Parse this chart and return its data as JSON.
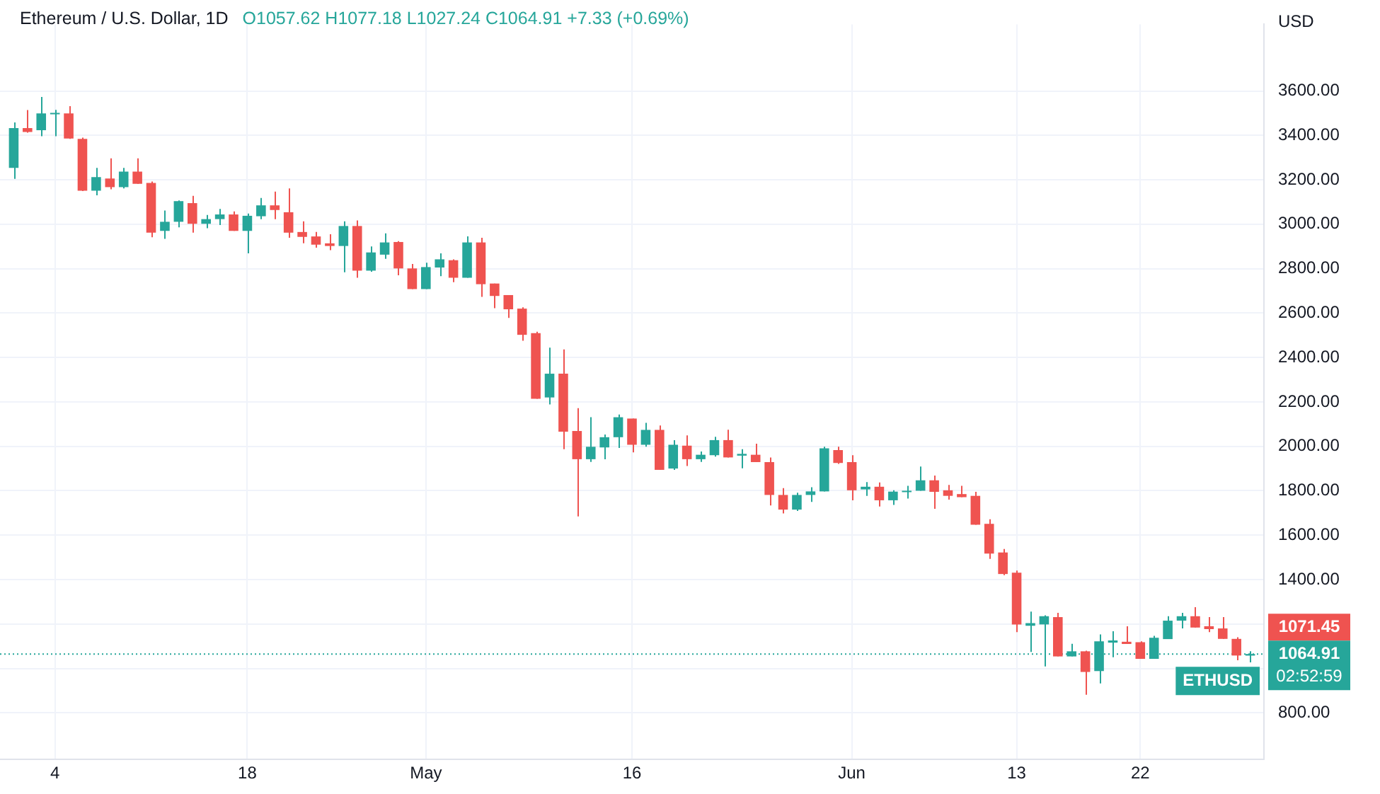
{
  "chart_data": {
    "type": "candlestick",
    "title": "Ethereum / U.S. Dollar, 1D",
    "subtitle": "O1057.62 H1077.18 L1027.24 C1064.91 +7.33 (+0.69%)",
    "ylabel": "USD",
    "x": [
      "--04-01",
      "--04-02",
      "--04-03",
      "--04-04",
      "--04-05",
      "--04-06",
      "--04-07",
      "--04-08",
      "--04-09",
      "--04-10",
      "--04-11",
      "--04-12",
      "--04-13",
      "--04-14",
      "--04-15",
      "--04-16",
      "--04-17",
      "--04-18",
      "--04-19",
      "--04-20",
      "--04-21",
      "--04-22",
      "--04-23",
      "--04-24",
      "--04-25",
      "--04-26",
      "--04-27",
      "--04-28",
      "--04-29",
      "--04-30",
      "--05-01",
      "--05-02",
      "--05-03",
      "--05-04",
      "--05-05",
      "--05-06",
      "--05-07",
      "--05-08",
      "--05-09",
      "--05-10",
      "--05-11",
      "--05-12",
      "--05-13",
      "--05-14",
      "--05-15",
      "--05-16",
      "--05-17",
      "--05-18",
      "--05-19",
      "--05-20",
      "--05-21",
      "--05-22",
      "--05-23",
      "--05-24",
      "--05-25",
      "--05-26",
      "--05-27",
      "--05-28",
      "--05-29",
      "--05-30",
      "--05-31",
      "--06-01",
      "--06-02",
      "--06-03",
      "--06-04",
      "--06-05",
      "--06-06",
      "--06-07",
      "--06-08",
      "--06-09",
      "--06-10",
      "--06-11",
      "--06-12",
      "--06-13",
      "--06-14",
      "--06-15",
      "--06-16",
      "--06-17",
      "--06-18",
      "--06-19",
      "--06-20",
      "--06-21",
      "--06-22",
      "--06-23",
      "--06-24",
      "--06-25",
      "--06-26",
      "--06-27",
      "--06-28",
      "--06-29",
      "--06-30"
    ],
    "ohlc": [
      [
        3254,
        3458,
        3204,
        3433
      ],
      [
        3433,
        3514,
        3412,
        3415
      ],
      [
        3423,
        3573,
        3396,
        3499
      ],
      [
        3498,
        3515,
        3396,
        3501
      ],
      [
        3499,
        3532,
        3384,
        3386
      ],
      [
        3384,
        3390,
        3149,
        3151
      ],
      [
        3151,
        3254,
        3130,
        3212
      ],
      [
        3206,
        3297,
        3157,
        3167
      ],
      [
        3167,
        3254,
        3161,
        3237
      ],
      [
        3237,
        3297,
        3182,
        3182
      ],
      [
        3186,
        3192,
        2941,
        2962
      ],
      [
        2970,
        3062,
        2934,
        3011
      ],
      [
        3011,
        3107,
        2986,
        3104
      ],
      [
        3095,
        3128,
        2962,
        3002
      ],
      [
        3002,
        3042,
        2982,
        3023
      ],
      [
        3023,
        3069,
        2996,
        3044
      ],
      [
        3044,
        3058,
        2970,
        2970
      ],
      [
        2970,
        3048,
        2869,
        3038
      ],
      [
        3036,
        3118,
        3023,
        3085
      ],
      [
        3085,
        3147,
        3023,
        3064
      ],
      [
        3054,
        3161,
        2939,
        2962
      ],
      [
        2965,
        3013,
        2914,
        2943
      ],
      [
        2945,
        2965,
        2894,
        2908
      ],
      [
        2914,
        2955,
        2883,
        2902
      ],
      [
        2902,
        3013,
        2784,
        2992
      ],
      [
        2992,
        3017,
        2759,
        2791
      ],
      [
        2791,
        2900,
        2786,
        2873
      ],
      [
        2863,
        2959,
        2844,
        2918
      ],
      [
        2920,
        2924,
        2770,
        2801
      ],
      [
        2801,
        2821,
        2708,
        2708
      ],
      [
        2708,
        2827,
        2708,
        2807
      ],
      [
        2805,
        2869,
        2766,
        2842
      ],
      [
        2838,
        2842,
        2739,
        2759
      ],
      [
        2759,
        2945,
        2759,
        2918
      ],
      [
        2918,
        2939,
        2673,
        2730
      ],
      [
        2733,
        2733,
        2622,
        2677
      ],
      [
        2681,
        2681,
        2578,
        2617
      ],
      [
        2620,
        2626,
        2475,
        2502
      ],
      [
        2510,
        2516,
        2214,
        2214
      ],
      [
        2220,
        2444,
        2189,
        2327
      ],
      [
        2327,
        2436,
        1987,
        2066
      ],
      [
        2069,
        2172,
        1684,
        1942
      ],
      [
        1942,
        2131,
        1930,
        1998
      ],
      [
        1995,
        2053,
        1942,
        2041
      ],
      [
        2041,
        2143,
        1993,
        2131
      ],
      [
        2125,
        2125,
        1973,
        2007
      ],
      [
        2007,
        2106,
        1998,
        2074
      ],
      [
        2074,
        2094,
        1894,
        1894
      ],
      [
        1900,
        2028,
        1894,
        2007
      ],
      [
        2003,
        2049,
        1911,
        1942
      ],
      [
        1942,
        1977,
        1930,
        1962
      ],
      [
        1960,
        2043,
        1954,
        2028
      ],
      [
        2028,
        2075,
        1950,
        1950
      ],
      [
        1958,
        1987,
        1901,
        1966
      ],
      [
        1962,
        2012,
        1929,
        1929
      ],
      [
        1929,
        1950,
        1734,
        1781
      ],
      [
        1781,
        1812,
        1698,
        1715
      ],
      [
        1715,
        1791,
        1709,
        1781
      ],
      [
        1781,
        1816,
        1750,
        1797
      ],
      [
        1797,
        1998,
        1797,
        1991
      ],
      [
        1983,
        1998,
        1921,
        1925
      ],
      [
        1929,
        1960,
        1757,
        1802
      ],
      [
        1806,
        1839,
        1777,
        1818
      ],
      [
        1818,
        1837,
        1729,
        1757
      ],
      [
        1757,
        1802,
        1736,
        1796
      ],
      [
        1794,
        1822,
        1765,
        1800
      ],
      [
        1800,
        1909,
        1800,
        1847
      ],
      [
        1847,
        1868,
        1719,
        1795
      ],
      [
        1802,
        1826,
        1760,
        1777
      ],
      [
        1785,
        1822,
        1771,
        1771
      ],
      [
        1777,
        1795,
        1647,
        1647
      ],
      [
        1651,
        1672,
        1493,
        1517
      ],
      [
        1522,
        1538,
        1420,
        1425
      ],
      [
        1431,
        1441,
        1163,
        1198
      ],
      [
        1192,
        1256,
        1074,
        1204
      ],
      [
        1198,
        1239,
        1009,
        1235
      ],
      [
        1231,
        1250,
        1054,
        1054
      ],
      [
        1054,
        1111,
        1054,
        1077
      ],
      [
        1077,
        1080,
        881,
        984
      ],
      [
        988,
        1153,
        932,
        1122
      ],
      [
        1116,
        1167,
        1050,
        1126
      ],
      [
        1120,
        1190,
        1110,
        1110
      ],
      [
        1118,
        1122,
        1043,
        1043
      ],
      [
        1043,
        1147,
        1043,
        1138
      ],
      [
        1132,
        1235,
        1132,
        1215
      ],
      [
        1215,
        1250,
        1180,
        1235
      ],
      [
        1235,
        1276,
        1184,
        1184
      ],
      [
        1190,
        1231,
        1163,
        1177
      ],
      [
        1180,
        1231,
        1133,
        1133
      ],
      [
        1133,
        1140,
        1037,
        1058
      ],
      [
        1057.62,
        1077.18,
        1027.24,
        1064.91
      ]
    ],
    "colors": [
      "#26a69a",
      "#ef5350",
      "#26a69a",
      "#26a69a",
      "#ef5350",
      "#ef5350",
      "#26a69a",
      "#ef5350",
      "#26a69a",
      "#ef5350",
      "#ef5350",
      "#26a69a",
      "#26a69a",
      "#ef5350",
      "#26a69a",
      "#26a69a",
      "#ef5350",
      "#26a69a",
      "#26a69a",
      "#ef5350",
      "#ef5350",
      "#ef5350",
      "#ef5350",
      "#ef5350",
      "#26a69a",
      "#ef5350",
      "#26a69a",
      "#26a69a",
      "#ef5350",
      "#ef5350",
      "#26a69a",
      "#26a69a",
      "#ef5350",
      "#26a69a",
      "#ef5350",
      "#ef5350",
      "#ef5350",
      "#ef5350",
      "#ef5350",
      "#26a69a",
      "#ef5350",
      "#ef5350",
      "#26a69a",
      "#26a69a",
      "#26a69a",
      "#ef5350",
      "#26a69a",
      "#ef5350",
      "#26a69a",
      "#ef5350",
      "#26a69a",
      "#26a69a",
      "#ef5350",
      "#26a69a",
      "#ef5350",
      "#ef5350",
      "#ef5350",
      "#26a69a",
      "#26a69a",
      "#26a69a",
      "#ef5350",
      "#ef5350",
      "#26a69a",
      "#ef5350",
      "#26a69a",
      "#26a69a",
      "#26a69a",
      "#ef5350",
      "#ef5350",
      "#ef5350",
      "#ef5350",
      "#ef5350",
      "#ef5350",
      "#ef5350",
      "#26a69a",
      "#26a69a",
      "#ef5350",
      "#26a69a",
      "#ef5350",
      "#26a69a",
      "#26a69a",
      "#ef5350",
      "#ef5350",
      "#26a69a",
      "#26a69a",
      "#26a69a",
      "#ef5350",
      "#ef5350",
      "#ef5350",
      "#ef5350",
      "#26a69a"
    ],
    "xlim": [
      "--03-31",
      "--07-01"
    ],
    "xticks": [
      {
        "value": "--04-04",
        "label": "4"
      },
      {
        "value": "--04-18",
        "label": "18"
      },
      {
        "value": "--05-01",
        "label": "May"
      },
      {
        "value": "--05-16",
        "label": "16"
      },
      {
        "value": "--06-01",
        "label": "Jun"
      },
      {
        "value": "--06-13",
        "label": "13"
      },
      {
        "value": "--06-22",
        "label": "22"
      }
    ],
    "ylim": [
      590,
      3900
    ],
    "yticks": [
      {
        "value": 800,
        "label": "800.00"
      },
      {
        "value": 1000,
        "label": null
      },
      {
        "value": 1200,
        "label": null
      },
      {
        "value": 1400,
        "label": "1400.00"
      },
      {
        "value": 1600,
        "label": "1600.00"
      },
      {
        "value": 1800,
        "label": "1800.00"
      },
      {
        "value": 2000,
        "label": "2000.00"
      },
      {
        "value": 2200,
        "label": "2200.00"
      },
      {
        "value": 2400,
        "label": "2400.00"
      },
      {
        "value": 2600,
        "label": "2600.00"
      },
      {
        "value": 2800,
        "label": "2800.00"
      },
      {
        "value": 3000,
        "label": "3000.00"
      },
      {
        "value": 3200,
        "label": "3200.00"
      },
      {
        "value": 3400,
        "label": "3400.00"
      },
      {
        "value": 3600,
        "label": "3600.00"
      }
    ],
    "grid": true,
    "ref_lines": [
      {
        "axis": "y",
        "value": 1064.91,
        "label": "ETHUSD",
        "color": "#26a69a",
        "line_style": "dotted"
      }
    ],
    "annotations": [
      "1071.45",
      "1064.91",
      "02:52:59"
    ]
  }
}
